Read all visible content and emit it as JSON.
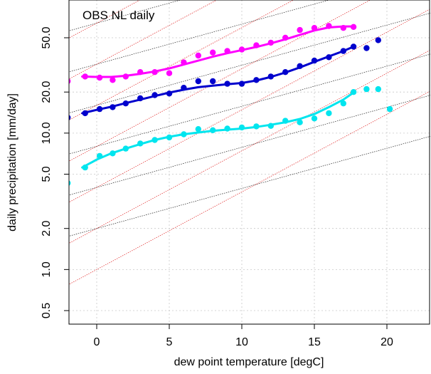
{
  "chart_data": {
    "type": "scatter",
    "title": "OBS NL daily",
    "xlabel": "dew point temperature [degC]",
    "ylabel": "daily precipitation [mm/day]",
    "xlim": [
      -2,
      23
    ],
    "ylim": [
      0.4,
      80
    ],
    "y_scale": "log",
    "grid": true,
    "x_ticks": [
      "0",
      "5",
      "10",
      "15",
      "20"
    ],
    "x_tick_values": [
      0,
      5,
      10,
      15,
      20
    ],
    "y_ticks": [
      "0.5",
      "1.0",
      "2.0",
      "5.0",
      "10.0",
      "20.0",
      "50.0"
    ],
    "y_tick_values": [
      0.5,
      1,
      2,
      5,
      10,
      20,
      50
    ],
    "reference_lines": {
      "black_rate_per_degC": 0.07,
      "red_rate_per_degC": 0.14,
      "black_anchor_values_at_x0": [
        2.0,
        4.0,
        8.0,
        16.0,
        32.0,
        64.0
      ],
      "red_anchor_values_at_x0": [
        1.0,
        2.0,
        4.0,
        8.0,
        16.0,
        32.0,
        64.0
      ],
      "colors": {
        "black": "#222222",
        "red": "#e02020"
      }
    },
    "series": [
      {
        "color": "#ff00ff",
        "x": [
          -2,
          -0.8,
          0.2,
          1.1,
          2.0,
          3.0,
          4.0,
          5.0,
          6.0,
          7.0,
          8.0,
          9.0,
          10.0,
          11.0,
          12.0,
          13.0,
          14.0,
          15.0,
          16.0,
          17.0,
          17.7
        ],
        "y": [
          24,
          26,
          25.5,
          24.5,
          26,
          28,
          28,
          27.5,
          33,
          37,
          39,
          40,
          41,
          44,
          46,
          50,
          57,
          59,
          61,
          59,
          60
        ],
        "fit_x": [
          -1,
          0,
          1,
          2,
          3,
          4,
          5,
          6,
          7,
          8,
          9,
          10,
          11,
          12,
          13,
          14,
          15,
          16,
          17,
          17.7
        ],
        "fit_y": [
          26,
          25.8,
          25.8,
          26.3,
          27.2,
          28.3,
          29.8,
          31.8,
          34,
          36.3,
          38.5,
          40.6,
          42.8,
          45.5,
          48.7,
          52.5,
          56.5,
          59.5,
          60.5,
          60.5
        ]
      },
      {
        "color": "#0000cd",
        "x": [
          -2,
          -0.8,
          0.2,
          1.1,
          2.0,
          3.0,
          4.0,
          5.0,
          6.0,
          7.0,
          8.0,
          9.0,
          10.0,
          11.0,
          12.0,
          13.0,
          14.0,
          15.0,
          16.0,
          17.0,
          17.7,
          18.6,
          19.4
        ],
        "y": [
          13,
          14,
          15,
          15.5,
          16.5,
          18,
          19,
          19.5,
          21.5,
          24,
          24,
          23,
          23,
          24.5,
          26,
          28,
          31,
          34,
          36,
          40,
          43,
          42,
          48
        ],
        "fit_x": [
          -1,
          0,
          1,
          2,
          3,
          4,
          5,
          6,
          7,
          8,
          9,
          10,
          11,
          12,
          13,
          14,
          15,
          16,
          17,
          17.7
        ],
        "fit_y": [
          14,
          14.8,
          15.6,
          16.6,
          17.6,
          18.7,
          19.8,
          20.8,
          21.7,
          22.3,
          22.8,
          23.3,
          24.3,
          25.8,
          27.8,
          30.3,
          33.3,
          36.5,
          40,
          43
        ]
      },
      {
        "color": "#00e5ee",
        "x": [
          -2,
          -0.8,
          0.2,
          1.1,
          2.0,
          3.0,
          4.0,
          5.0,
          6.0,
          7.0,
          8.0,
          9.0,
          10.0,
          11.0,
          12.0,
          13.0,
          14.0,
          15.0,
          16.0,
          17.0,
          17.7,
          18.6,
          19.4,
          20.2
        ],
        "y": [
          4.3,
          5.6,
          6.8,
          7.1,
          7.7,
          8.4,
          8.9,
          9.3,
          9.8,
          10.7,
          10.5,
          10.8,
          11.0,
          11.2,
          11.3,
          12.3,
          12.0,
          12.8,
          14.0,
          16.5,
          20,
          21,
          21,
          15
        ],
        "fit_x": [
          -1,
          0,
          1,
          2,
          3,
          4,
          5,
          6,
          7,
          8,
          9,
          10,
          11,
          12,
          13,
          14,
          15,
          16,
          17,
          17.7
        ],
        "fit_y": [
          5.6,
          6.4,
          7.1,
          7.7,
          8.3,
          8.9,
          9.4,
          9.8,
          10.1,
          10.4,
          10.6,
          10.8,
          11.1,
          11.5,
          12.0,
          12.7,
          13.8,
          15.5,
          17.6,
          19.8
        ]
      }
    ]
  }
}
